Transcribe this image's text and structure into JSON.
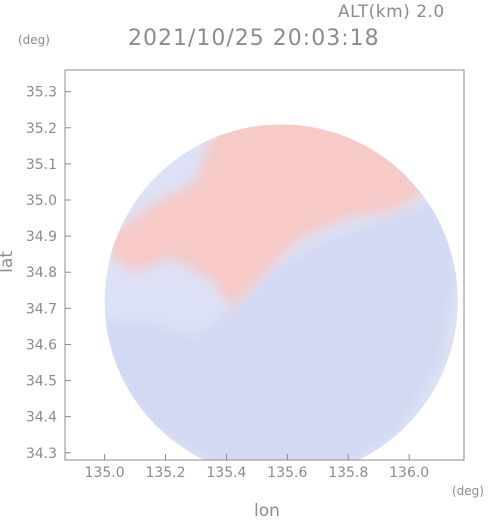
{
  "header": {
    "altitude": "ALT(km) 2.0",
    "timestamp": "2021/10/25 20:03:18"
  },
  "colors": {
    "positive": "#f7c9c7",
    "negative": "#d3d8f3",
    "axis": "#8c8c8c"
  },
  "chart_data": {
    "type": "heatmap",
    "title": "2021/10/25 20:03:18",
    "subtitle": "ALT(km) 2.0",
    "xlabel": "lon",
    "ylabel": "lat",
    "x_unit": "(deg)",
    "y_unit": "(deg)",
    "xlim": [
      134.87,
      136.18
    ],
    "ylim": [
      34.28,
      35.36
    ],
    "x_ticks": [
      "135.0",
      "135.2",
      "135.4",
      "135.6",
      "135.8",
      "136.0"
    ],
    "y_ticks": [
      "34.3",
      "34.4",
      "34.5",
      "34.6",
      "34.7",
      "34.8",
      "34.9",
      "35.0",
      "35.1",
      "35.2",
      "35.3"
    ],
    "grid": false,
    "radar_center": [
      135.58,
      34.72
    ],
    "radar_radius_deg": 0.58,
    "fields": {
      "positive_region": [
        [
          135.1,
          34.8
        ],
        [
          135.22,
          34.84
        ],
        [
          135.35,
          34.78
        ],
        [
          135.42,
          34.7
        ],
        [
          135.55,
          34.82
        ],
        [
          135.65,
          34.9
        ],
        [
          135.8,
          34.95
        ],
        [
          135.95,
          34.97
        ],
        [
          136.05,
          35.02
        ],
        [
          135.98,
          35.1
        ],
        [
          135.85,
          35.22
        ],
        [
          135.7,
          35.32
        ],
        [
          135.45,
          35.3
        ],
        [
          135.35,
          35.18
        ],
        [
          135.3,
          35.05
        ],
        [
          135.18,
          35.0
        ],
        [
          135.05,
          34.92
        ],
        [
          134.96,
          34.88
        ]
      ],
      "negative_region": [
        [
          134.97,
          34.67
        ],
        [
          135.15,
          34.66
        ],
        [
          135.3,
          34.62
        ],
        [
          135.42,
          34.7
        ],
        [
          135.55,
          34.8
        ],
        [
          135.7,
          34.88
        ],
        [
          135.9,
          34.94
        ],
        [
          136.1,
          35.0
        ],
        [
          136.15,
          34.8
        ],
        [
          136.1,
          34.55
        ],
        [
          135.95,
          34.35
        ],
        [
          135.7,
          34.22
        ],
        [
          135.4,
          34.25
        ],
        [
          135.15,
          34.38
        ],
        [
          135.0,
          34.55
        ]
      ]
    }
  }
}
